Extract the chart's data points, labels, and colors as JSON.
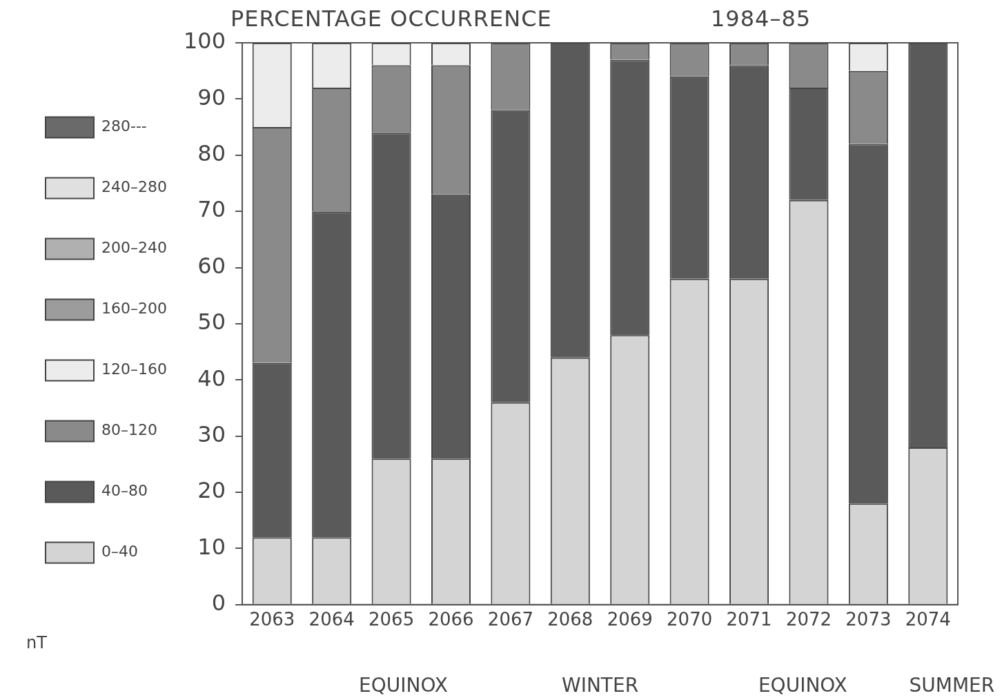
{
  "chart_data": {
    "type": "bar",
    "title": "PERCENTAGE OCCURRENCE",
    "subtitle": "1984–85",
    "legend_title": "nT",
    "stacked": true,
    "legend": "left",
    "grid": false,
    "categories": [
      "2063",
      "2064",
      "2065",
      "2066",
      "2067",
      "2068",
      "2069",
      "2070",
      "2071",
      "2072",
      "2073",
      "2074"
    ],
    "ylim": [
      0,
      100
    ],
    "yticks": [
      0,
      10,
      20,
      30,
      40,
      50,
      60,
      70,
      80,
      90,
      100
    ],
    "annotations": [
      "EQUINOX",
      "WINTER",
      "EQUINOX",
      "SUMMER"
    ],
    "series": [
      {
        "name": "0–40",
        "color": "#d4d4d4",
        "values": [
          12,
          12,
          26,
          26,
          36,
          44,
          48,
          58,
          58,
          72,
          18,
          28
        ]
      },
      {
        "name": "40–80",
        "color": "#5a5a5a",
        "values": [
          31,
          58,
          58,
          47,
          52,
          56,
          49,
          36,
          38,
          20,
          64,
          72
        ]
      },
      {
        "name": "80–120",
        "color": "#8a8a8a",
        "values": [
          42,
          22,
          12,
          23,
          12,
          0,
          3,
          6,
          4,
          8,
          13,
          0
        ]
      },
      {
        "name": "120–160",
        "color": "#ececec",
        "values": [
          15,
          8,
          4,
          4,
          0,
          0,
          0,
          0,
          0,
          0,
          5,
          0
        ]
      },
      {
        "name": "160–200",
        "color": "#9c9c9c",
        "values": [
          0,
          0,
          0,
          0,
          0,
          0,
          0,
          0,
          0,
          0,
          0,
          0
        ]
      },
      {
        "name": "200–240",
        "color": "#b0b0b0",
        "values": [
          0,
          0,
          0,
          0,
          0,
          0,
          0,
          0,
          0,
          0,
          0,
          0
        ]
      },
      {
        "name": "240–280",
        "color": "#e0e0e0",
        "values": [
          0,
          0,
          0,
          0,
          0,
          0,
          0,
          0,
          0,
          0,
          0,
          0
        ]
      },
      {
        "name": "280---",
        "color": "#6a6a6a",
        "values": [
          0,
          0,
          0,
          0,
          0,
          0,
          0,
          0,
          0,
          0,
          0,
          0
        ]
      }
    ]
  }
}
